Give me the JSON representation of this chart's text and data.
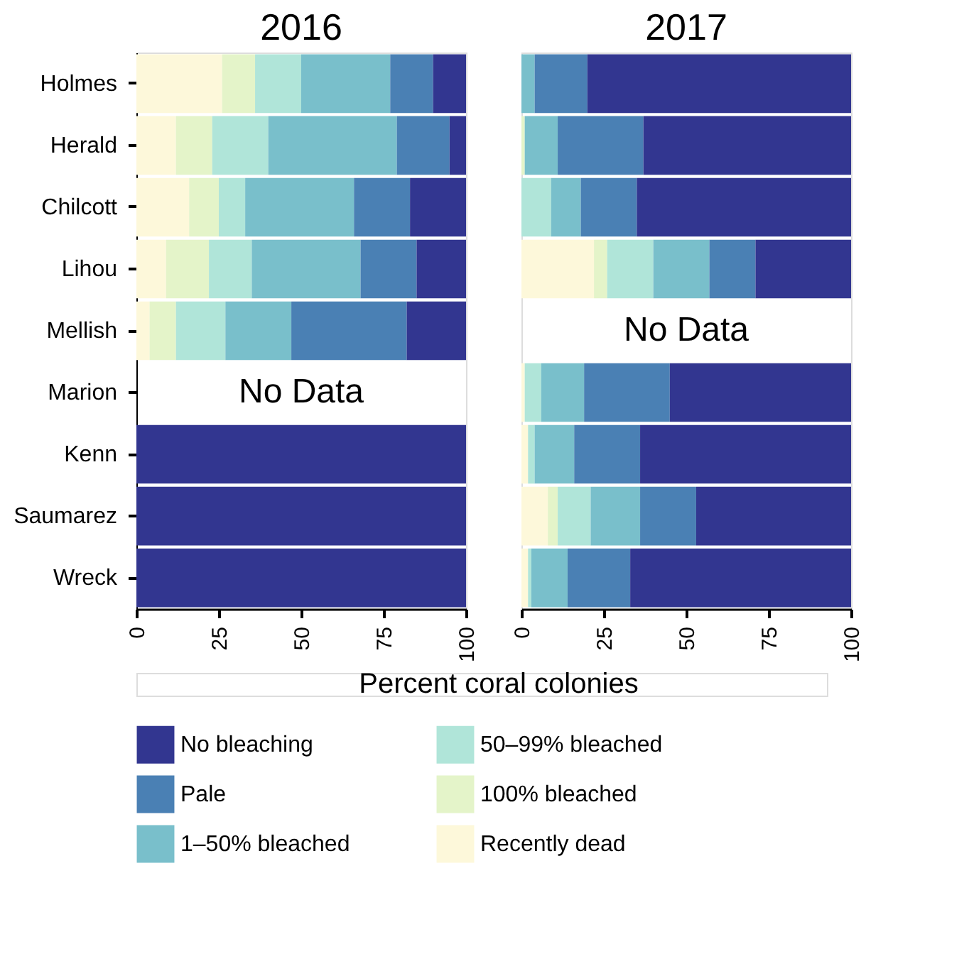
{
  "chart_data": [
    {
      "type": "bar",
      "title": "2016",
      "xlabel": "Percent coral colonies",
      "orientation": "horizontal",
      "stacked": true,
      "legend": "bottom",
      "grid": false,
      "categories": [
        "Holmes",
        "Herald",
        "Chilcott",
        "Lihou",
        "Mellish",
        "Marion",
        "Kenn",
        "Saumarez",
        "Wreck"
      ],
      "xlim": [
        0,
        100
      ],
      "xticks": [
        0,
        25,
        50,
        75,
        100
      ],
      "annotations": [
        "No Data"
      ],
      "series": [
        {
          "name": "Recently dead",
          "color": "#fdf8da",
          "values": [
            26,
            12,
            16,
            9,
            4,
            null,
            0,
            0,
            0
          ]
        },
        {
          "name": "100% bleached",
          "color": "#e4f4c9",
          "values": [
            10,
            11,
            9,
            13,
            8,
            null,
            0,
            0,
            0
          ]
        },
        {
          "name": "50–99% bleached",
          "color": "#b0e5d9",
          "values": [
            14,
            17,
            8,
            13,
            15,
            null,
            0,
            0,
            0
          ]
        },
        {
          "name": "1–50% bleached",
          "color": "#79bfcb",
          "values": [
            27,
            39,
            33,
            33,
            20,
            null,
            0,
            0,
            0
          ]
        },
        {
          "name": "Pale",
          "color": "#4a80b4",
          "values": [
            13,
            16,
            17,
            17,
            35,
            null,
            0,
            0,
            0
          ]
        },
        {
          "name": "No bleaching",
          "color": "#323690",
          "values": [
            10,
            5,
            17,
            15,
            18,
            null,
            100,
            100,
            100
          ]
        }
      ]
    },
    {
      "type": "bar",
      "title": "2017",
      "orientation": "horizontal",
      "stacked": true,
      "grid": false,
      "tick_labels": "x",
      "categories": [
        "Holmes",
        "Herald",
        "Chilcott",
        "Lihou",
        "Mellish",
        "Marion",
        "Kenn",
        "Saumarez",
        "Wreck"
      ],
      "xlim": [
        0,
        100
      ],
      "xticks": [
        0,
        25,
        50,
        75,
        100
      ],
      "annotations": [
        "No Data"
      ],
      "series": [
        {
          "color": "#fdf8da",
          "values": [
            0,
            0,
            0,
            22,
            null,
            1,
            2,
            8,
            2
          ]
        },
        {
          "color": "#e4f4c9",
          "values": [
            0,
            1,
            0,
            4,
            null,
            0,
            0,
            3,
            0
          ]
        },
        {
          "color": "#b0e5d9",
          "values": [
            0,
            0,
            9,
            14,
            null,
            5,
            2,
            10,
            1
          ]
        },
        {
          "color": "#79bfcb",
          "values": [
            4,
            10,
            9,
            17,
            null,
            13,
            12,
            15,
            11
          ]
        },
        {
          "color": "#4a80b4",
          "values": [
            16,
            26,
            17,
            14,
            null,
            26,
            20,
            17,
            19
          ]
        },
        {
          "color": "#323690",
          "values": [
            80,
            63,
            65,
            29,
            null,
            55,
            64,
            47,
            67
          ]
        }
      ]
    }
  ]
}
